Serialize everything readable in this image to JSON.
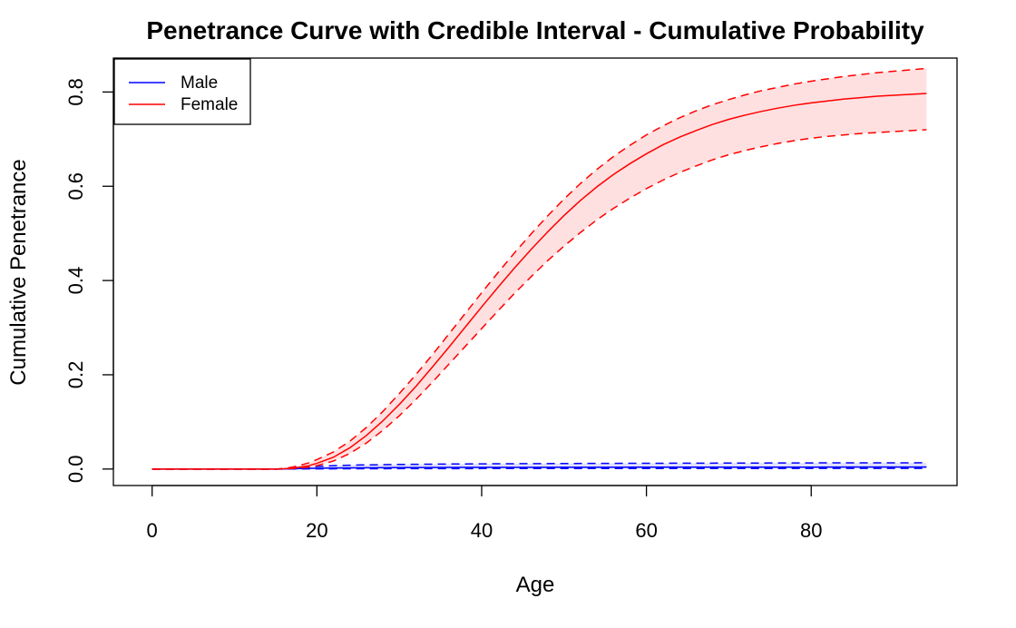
{
  "chart_data": {
    "type": "line",
    "title": "Penetrance Curve with Credible Interval - Cumulative Probability",
    "xlabel": "Age",
    "ylabel": "Cumulative Penetrance",
    "xlim": [
      -4.7,
      97.7
    ],
    "ylim": [
      -0.035,
      0.872
    ],
    "xticks": [
      0,
      20,
      40,
      60,
      80
    ],
    "yticks": [
      0.0,
      0.2,
      0.4,
      0.6,
      0.8
    ],
    "xtick_labels": [
      "0",
      "20",
      "40",
      "60",
      "80"
    ],
    "ytick_labels": [
      "0.0",
      "0.2",
      "0.4",
      "0.6",
      "0.8"
    ],
    "grid": false,
    "legend_position": "top-left",
    "series": [
      {
        "name": "Male",
        "color": "#0000ff",
        "x": [
          0,
          5,
          10,
          15,
          16,
          17,
          18,
          19,
          20,
          22,
          25,
          30,
          35,
          40,
          45,
          50,
          55,
          60,
          65,
          70,
          75,
          80,
          85,
          90,
          94
        ],
        "y": [
          0,
          0,
          0,
          0,
          0.0002,
          0.0006,
          0.001,
          0.0013,
          0.0016,
          0.002,
          0.0025,
          0.003,
          0.0033,
          0.0035,
          0.0036,
          0.0037,
          0.0038,
          0.0039,
          0.004,
          0.004,
          0.0041,
          0.0041,
          0.0042,
          0.0042,
          0.0042
        ],
        "lower": [
          0,
          0,
          0,
          0,
          0,
          0.0001,
          0.0002,
          0.0003,
          0.0004,
          0.0005,
          0.0006,
          0.0008,
          0.0009,
          0.001,
          0.001,
          0.0011,
          0.0011,
          0.0012,
          0.0012,
          0.0012,
          0.0012,
          0.0013,
          0.0013,
          0.0013,
          0.0013
        ],
        "upper": [
          0,
          0,
          0,
          0,
          0.0008,
          0.002,
          0.003,
          0.004,
          0.0055,
          0.0072,
          0.0085,
          0.0098,
          0.0105,
          0.011,
          0.0114,
          0.0117,
          0.012,
          0.0122,
          0.0124,
          0.0126,
          0.0128,
          0.013,
          0.0131,
          0.0132,
          0.0133
        ]
      },
      {
        "name": "Female",
        "color": "#ff0000",
        "x": [
          0,
          5,
          10,
          15,
          16,
          17,
          18,
          19,
          20,
          22,
          24,
          26,
          28,
          30,
          32,
          34,
          36,
          38,
          40,
          42,
          44,
          46,
          48,
          50,
          52,
          54,
          56,
          58,
          60,
          62,
          64,
          66,
          68,
          70,
          72,
          74,
          76,
          78,
          80,
          82,
          84,
          86,
          88,
          90,
          92,
          94
        ],
        "y": [
          0,
          0,
          0,
          0,
          0.0006,
          0.002,
          0.004,
          0.007,
          0.012,
          0.025,
          0.045,
          0.071,
          0.102,
          0.137,
          0.175,
          0.216,
          0.258,
          0.301,
          0.344,
          0.386,
          0.427,
          0.466,
          0.503,
          0.538,
          0.57,
          0.599,
          0.625,
          0.648,
          0.669,
          0.688,
          0.704,
          0.718,
          0.731,
          0.742,
          0.751,
          0.759,
          0.766,
          0.772,
          0.777,
          0.781,
          0.785,
          0.788,
          0.791,
          0.793,
          0.795,
          0.797
        ],
        "lower": [
          0,
          0,
          0,
          0,
          0.0002,
          0.001,
          0.002,
          0.004,
          0.007,
          0.017,
          0.033,
          0.055,
          0.082,
          0.113,
          0.147,
          0.184,
          0.222,
          0.26,
          0.298,
          0.336,
          0.373,
          0.408,
          0.442,
          0.473,
          0.502,
          0.529,
          0.553,
          0.575,
          0.595,
          0.613,
          0.629,
          0.643,
          0.656,
          0.667,
          0.676,
          0.684,
          0.691,
          0.697,
          0.702,
          0.706,
          0.709,
          0.712,
          0.714,
          0.716,
          0.718,
          0.72
        ],
        "upper": [
          0,
          0,
          0,
          0,
          0.0012,
          0.004,
          0.008,
          0.013,
          0.02,
          0.036,
          0.059,
          0.088,
          0.122,
          0.16,
          0.2,
          0.242,
          0.286,
          0.33,
          0.374,
          0.417,
          0.459,
          0.499,
          0.537,
          0.573,
          0.606,
          0.636,
          0.663,
          0.687,
          0.709,
          0.728,
          0.745,
          0.76,
          0.773,
          0.784,
          0.794,
          0.803,
          0.81,
          0.817,
          0.823,
          0.828,
          0.833,
          0.837,
          0.841,
          0.844,
          0.847,
          0.85
        ]
      }
    ]
  }
}
